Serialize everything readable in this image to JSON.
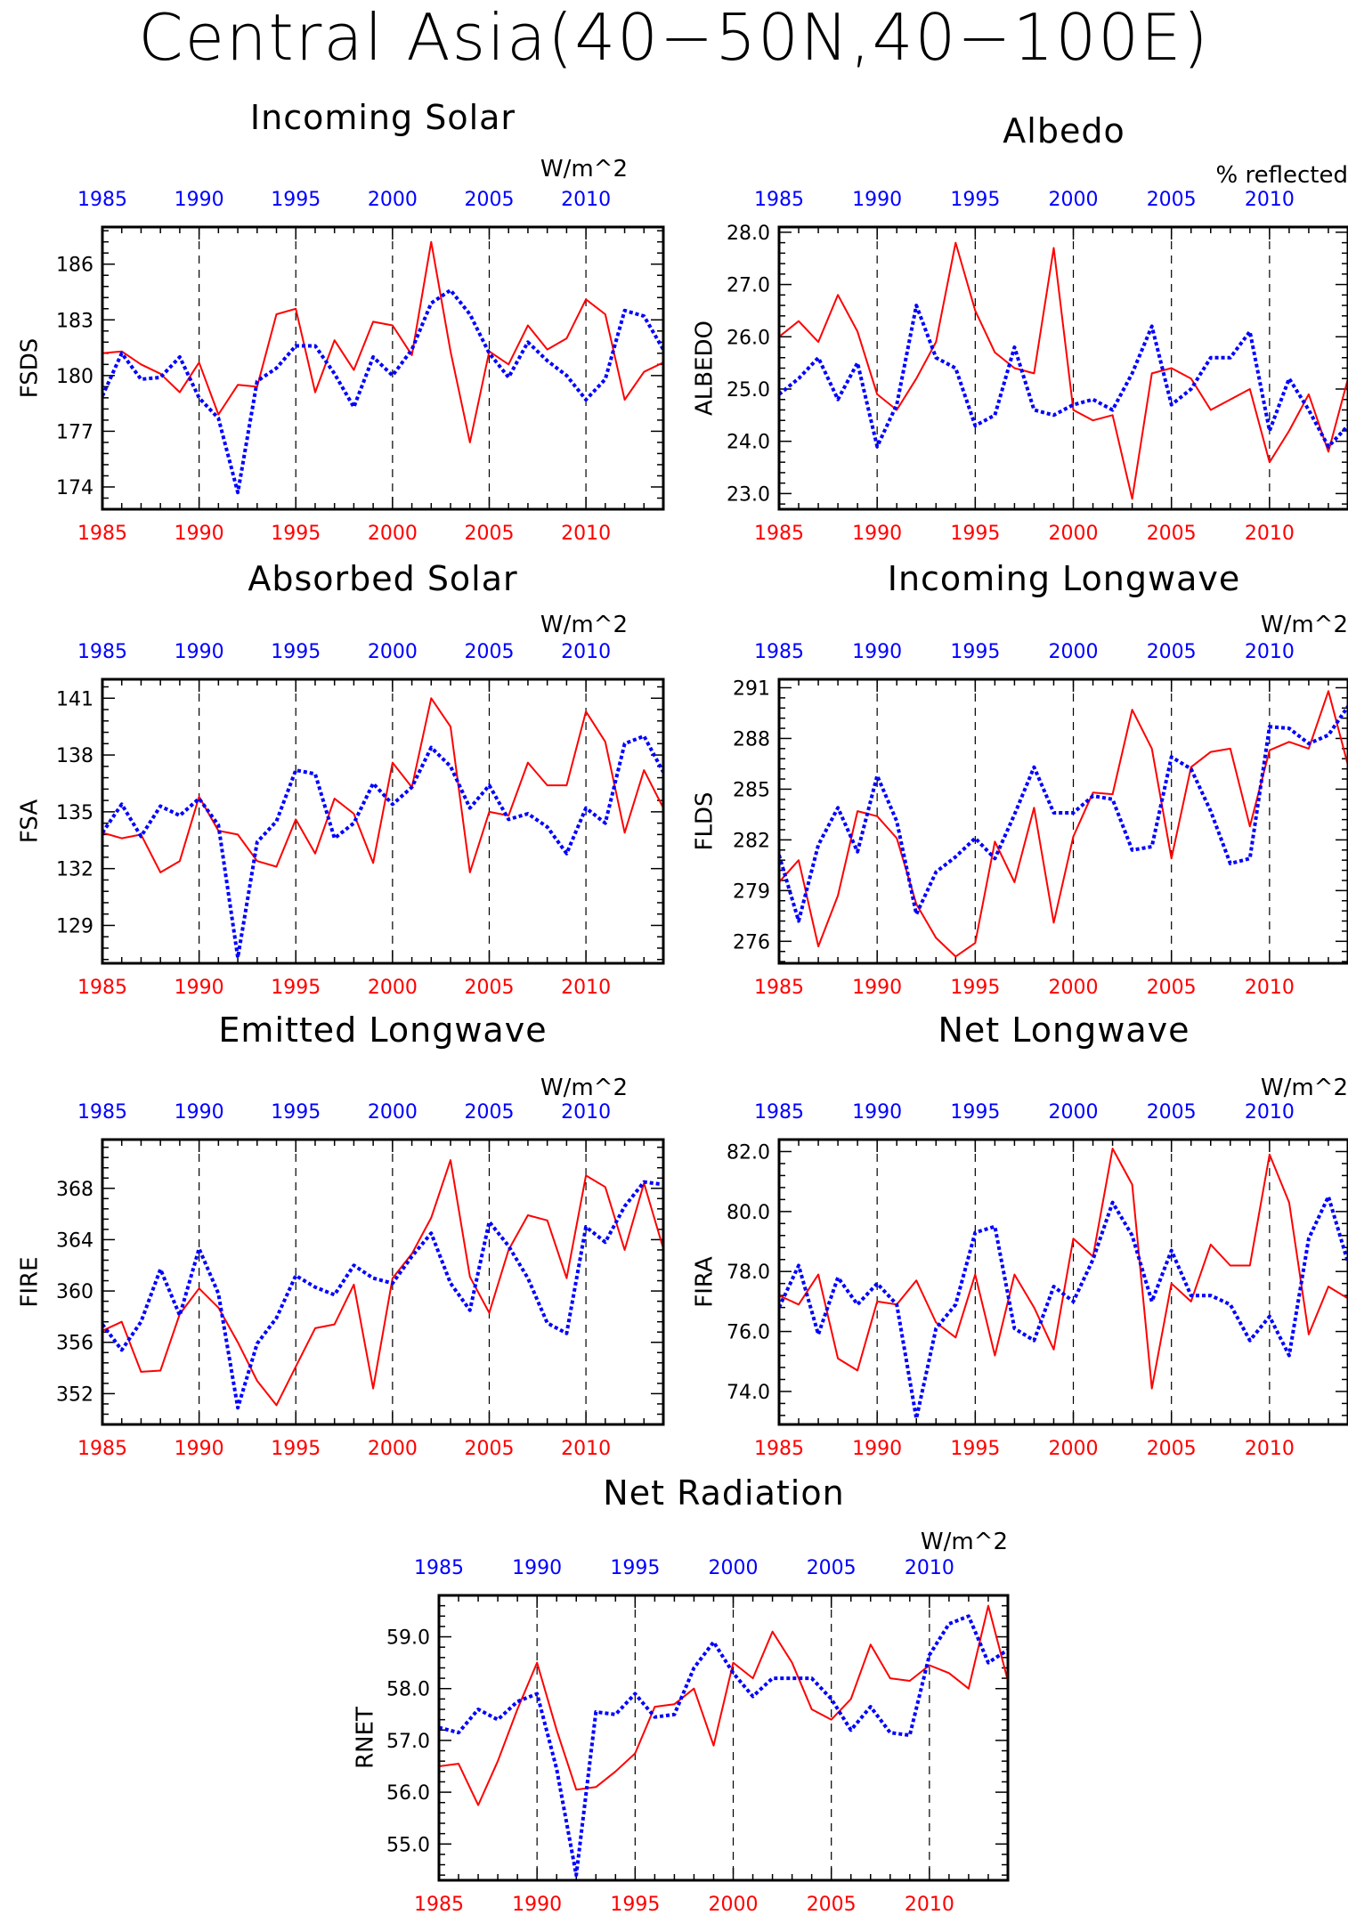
{
  "title": "Central Asia(40−50N,40−100E)",
  "colors": {
    "red_series": "#ff0000",
    "blue_series": "#0000ff",
    "axis": "#000000"
  },
  "chart_data": [
    {
      "type": "line",
      "title": "Incoming Solar",
      "ylabel": "FSDS",
      "units": "W/m^2",
      "xlim": [
        1985,
        2014
      ],
      "ylim": [
        172.8,
        188.0
      ],
      "yticks": [
        174,
        177,
        180,
        183,
        186
      ],
      "ytick_labels": [
        "174",
        "177",
        "180",
        "183",
        "186"
      ],
      "xticks": [
        1985,
        1990,
        1995,
        2000,
        2005,
        2010
      ],
      "x": [
        1985,
        1986,
        1987,
        1988,
        1989,
        1990,
        1991,
        1992,
        1993,
        1994,
        1995,
        1996,
        1997,
        1998,
        1999,
        2000,
        2001,
        2002,
        2003,
        2004,
        2005,
        2006,
        2007,
        2008,
        2009,
        2010,
        2011,
        2012,
        2013,
        2014
      ],
      "series": [
        {
          "style": "solid",
          "values": [
            181.2,
            181.3,
            180.6,
            180.1,
            179.1,
            180.7,
            177.9,
            179.5,
            179.4,
            183.3,
            183.6,
            179.1,
            181.9,
            180.3,
            182.9,
            182.7,
            181.1,
            187.2,
            181.3,
            176.4,
            181.3,
            180.6,
            182.7,
            181.4,
            182.0,
            184.1,
            183.3,
            178.7,
            180.2,
            180.7
          ]
        },
        {
          "style": "dotted",
          "values": [
            178.9,
            181.2,
            179.8,
            179.9,
            181.0,
            178.8,
            177.7,
            173.7,
            179.7,
            180.4,
            181.6,
            181.6,
            180.1,
            178.3,
            181.0,
            180.0,
            181.4,
            183.9,
            184.6,
            183.3,
            181.2,
            179.9,
            181.8,
            180.8,
            180.0,
            178.7,
            179.8,
            183.5,
            183.2,
            181.4
          ]
        }
      ]
    },
    {
      "type": "line",
      "title": "Albedo",
      "ylabel": "ALBEDO",
      "units": "% reflected",
      "xlim": [
        1985,
        2014
      ],
      "ylim": [
        22.7,
        28.1
      ],
      "yticks": [
        23.0,
        24.0,
        25.0,
        26.0,
        27.0,
        28.0
      ],
      "ytick_labels": [
        "23.0",
        "24.0",
        "25.0",
        "26.0",
        "27.0",
        "28.0"
      ],
      "xticks": [
        1985,
        1990,
        1995,
        2000,
        2005,
        2010
      ],
      "x": [
        1985,
        1986,
        1987,
        1988,
        1989,
        1990,
        1991,
        1992,
        1993,
        1994,
        1995,
        1996,
        1997,
        1998,
        1999,
        2000,
        2001,
        2002,
        2003,
        2004,
        2005,
        2006,
        2007,
        2008,
        2009,
        2010,
        2011,
        2012,
        2013,
        2014
      ],
      "series": [
        {
          "style": "solid",
          "values": [
            26.0,
            26.3,
            25.9,
            26.8,
            26.1,
            24.9,
            24.6,
            25.2,
            25.9,
            27.8,
            26.5,
            25.7,
            25.4,
            25.3,
            27.7,
            24.6,
            24.4,
            24.5,
            22.9,
            25.3,
            25.4,
            25.2,
            24.6,
            24.8,
            25.0,
            23.6,
            24.2,
            24.9,
            23.8,
            25.2
          ]
        },
        {
          "style": "dotted",
          "values": [
            24.9,
            25.2,
            25.6,
            24.8,
            25.5,
            23.9,
            24.7,
            26.6,
            25.6,
            25.4,
            24.3,
            24.5,
            25.8,
            24.6,
            24.5,
            24.7,
            24.8,
            24.6,
            25.3,
            26.2,
            24.7,
            25.0,
            25.6,
            25.6,
            26.1,
            24.2,
            25.2,
            24.6,
            23.9,
            24.3
          ]
        }
      ]
    },
    {
      "type": "line",
      "title": "Absorbed Solar",
      "ylabel": "FSA",
      "units": "W/m^2",
      "xlim": [
        1985,
        2014
      ],
      "ylim": [
        127.0,
        142.0
      ],
      "yticks": [
        129,
        132,
        135,
        138,
        141
      ],
      "ytick_labels": [
        "129",
        "132",
        "135",
        "138",
        "141"
      ],
      "xticks": [
        1985,
        1990,
        1995,
        2000,
        2005,
        2010
      ],
      "x": [
        1985,
        1986,
        1987,
        1988,
        1989,
        1990,
        1991,
        1992,
        1993,
        1994,
        1995,
        1996,
        1997,
        1998,
        1999,
        2000,
        2001,
        2002,
        2003,
        2004,
        2005,
        2006,
        2007,
        2008,
        2009,
        2010,
        2011,
        2012,
        2013,
        2014
      ],
      "series": [
        {
          "style": "solid",
          "values": [
            133.9,
            133.6,
            133.8,
            131.8,
            132.4,
            135.8,
            134.0,
            133.8,
            132.4,
            132.1,
            134.6,
            132.8,
            135.7,
            134.9,
            132.3,
            137.6,
            136.3,
            141.0,
            139.5,
            131.8,
            135.0,
            134.8,
            137.6,
            136.4,
            136.4,
            140.3,
            138.7,
            133.9,
            137.2,
            135.2
          ]
        },
        {
          "style": "dotted",
          "values": [
            133.9,
            135.4,
            133.7,
            135.3,
            134.8,
            135.7,
            134.3,
            127.3,
            133.4,
            134.5,
            137.2,
            137.0,
            133.6,
            134.4,
            136.5,
            135.4,
            136.3,
            138.4,
            137.4,
            135.2,
            136.4,
            134.6,
            134.9,
            134.2,
            132.8,
            135.2,
            134.4,
            138.6,
            139.0,
            137.1
          ]
        }
      ]
    },
    {
      "type": "line",
      "title": "Incoming Longwave",
      "ylabel": "FLDS",
      "units": "W/m^2",
      "xlim": [
        1985,
        2014
      ],
      "ylim": [
        274.7,
        291.5
      ],
      "yticks": [
        276,
        279,
        282,
        285,
        288,
        291
      ],
      "ytick_labels": [
        "276",
        "279",
        "282",
        "285",
        "288",
        "291"
      ],
      "xticks": [
        1985,
        1990,
        1995,
        2000,
        2005,
        2010
      ],
      "x": [
        1985,
        1986,
        1987,
        1988,
        1989,
        1990,
        1991,
        1992,
        1993,
        1994,
        1995,
        1996,
        1997,
        1998,
        1999,
        2000,
        2001,
        2002,
        2003,
        2004,
        2005,
        2006,
        2007,
        2008,
        2009,
        2010,
        2011,
        2012,
        2013,
        2014
      ],
      "series": [
        {
          "style": "solid",
          "values": [
            279.5,
            280.8,
            275.7,
            278.7,
            283.7,
            283.4,
            282.1,
            278.2,
            276.2,
            275.1,
            275.9,
            281.9,
            279.5,
            283.9,
            277.1,
            282.2,
            284.8,
            284.7,
            289.7,
            287.4,
            280.9,
            286.3,
            287.2,
            287.4,
            282.8,
            287.3,
            287.8,
            287.4,
            290.8,
            286.4
          ]
        },
        {
          "style": "dotted",
          "values": [
            281.1,
            277.2,
            281.7,
            283.9,
            281.3,
            285.8,
            283.1,
            277.6,
            280.1,
            281.0,
            282.1,
            280.9,
            283.5,
            286.3,
            283.6,
            283.6,
            284.6,
            284.4,
            281.4,
            281.6,
            286.9,
            286.2,
            283.7,
            280.6,
            280.9,
            288.7,
            288.6,
            287.7,
            288.2,
            289.9
          ]
        }
      ]
    },
    {
      "type": "line",
      "title": "Emitted Longwave",
      "ylabel": "FIRE",
      "units": "W/m^2",
      "xlim": [
        1985,
        2014
      ],
      "ylim": [
        349.6,
        371.8
      ],
      "yticks": [
        352,
        356,
        360,
        364,
        368
      ],
      "ytick_labels": [
        "352",
        "356",
        "360",
        "364",
        "368"
      ],
      "xticks": [
        1985,
        1990,
        1995,
        2000,
        2005,
        2010
      ],
      "x": [
        1985,
        1986,
        1987,
        1988,
        1989,
        1990,
        1991,
        1992,
        1993,
        1994,
        1995,
        1996,
        1997,
        1998,
        1999,
        2000,
        2001,
        2002,
        2003,
        2004,
        2005,
        2006,
        2007,
        2008,
        2009,
        2010,
        2011,
        2012,
        2013,
        2014
      ],
      "series": [
        {
          "style": "solid",
          "values": [
            356.9,
            357.6,
            353.7,
            353.8,
            358.2,
            360.2,
            358.7,
            356.0,
            353.0,
            351.1,
            354.1,
            357.1,
            357.4,
            360.5,
            352.4,
            361.0,
            362.9,
            365.7,
            370.2,
            361.1,
            358.3,
            363.2,
            365.9,
            365.5,
            361.0,
            369.0,
            368.1,
            363.2,
            368.4,
            363.3
          ]
        },
        {
          "style": "dotted",
          "values": [
            357.4,
            355.4,
            357.6,
            361.7,
            358.1,
            363.3,
            359.8,
            350.9,
            355.9,
            357.9,
            361.2,
            360.3,
            359.7,
            362.0,
            361.0,
            360.6,
            362.7,
            364.5,
            360.6,
            358.5,
            365.4,
            363.5,
            361.0,
            357.5,
            356.7,
            365.0,
            363.8,
            366.6,
            368.5,
            368.3
          ]
        }
      ]
    },
    {
      "type": "line",
      "title": "Net Longwave",
      "ylabel": "FIRA",
      "units": "W/m^2",
      "xlim": [
        1985,
        2014
      ],
      "ylim": [
        72.9,
        82.4
      ],
      "yticks": [
        74.0,
        76.0,
        78.0,
        80.0,
        82.0
      ],
      "ytick_labels": [
        "74.0",
        "76.0",
        "78.0",
        "80.0",
        "82.0"
      ],
      "xticks": [
        1985,
        1990,
        1995,
        2000,
        2005,
        2010
      ],
      "x": [
        1985,
        1986,
        1987,
        1988,
        1989,
        1990,
        1991,
        1992,
        1993,
        1994,
        1995,
        1996,
        1997,
        1998,
        1999,
        2000,
        2001,
        2002,
        2003,
        2004,
        2005,
        2006,
        2007,
        2008,
        2009,
        2010,
        2011,
        2012,
        2013,
        2014
      ],
      "series": [
        {
          "style": "solid",
          "values": [
            77.2,
            76.9,
            77.9,
            75.1,
            74.7,
            77.0,
            76.9,
            77.7,
            76.3,
            75.8,
            77.9,
            75.2,
            77.9,
            76.8,
            75.4,
            79.1,
            78.5,
            82.1,
            80.9,
            74.1,
            77.6,
            77.0,
            78.9,
            78.2,
            78.2,
            81.9,
            80.3,
            75.9,
            77.5,
            77.1
          ]
        },
        {
          "style": "dotted",
          "values": [
            76.8,
            78.2,
            75.9,
            77.8,
            76.9,
            77.6,
            76.9,
            73.1,
            76.1,
            76.9,
            79.3,
            79.5,
            76.1,
            75.7,
            77.5,
            77.0,
            78.4,
            80.3,
            79.2,
            77.0,
            78.7,
            77.2,
            77.2,
            76.9,
            75.7,
            76.5,
            75.2,
            79.1,
            80.5,
            78.3
          ]
        }
      ]
    },
    {
      "type": "line",
      "title": "Net Radiation",
      "ylabel": "RNET",
      "units": "W/m^2",
      "xlim": [
        1985,
        2014
      ],
      "ylim": [
        54.3,
        59.8
      ],
      "yticks": [
        55.0,
        56.0,
        57.0,
        58.0,
        59.0
      ],
      "ytick_labels": [
        "55.0",
        "56.0",
        "57.0",
        "58.0",
        "59.0"
      ],
      "xticks": [
        1985,
        1990,
        1995,
        2000,
        2005,
        2010
      ],
      "x": [
        1985,
        1986,
        1987,
        1988,
        1989,
        1990,
        1991,
        1992,
        1993,
        1994,
        1995,
        1996,
        1997,
        1998,
        1999,
        2000,
        2001,
        2002,
        2003,
        2004,
        2005,
        2006,
        2007,
        2008,
        2009,
        2010,
        2011,
        2012,
        2013,
        2014
      ],
      "series": [
        {
          "style": "solid",
          "values": [
            56.5,
            56.55,
            55.75,
            56.6,
            57.6,
            58.5,
            57.2,
            56.05,
            56.1,
            56.4,
            56.75,
            57.65,
            57.7,
            58.0,
            56.9,
            58.5,
            58.2,
            59.1,
            58.5,
            57.6,
            57.4,
            57.8,
            58.85,
            58.2,
            58.15,
            58.45,
            58.3,
            58.0,
            59.6,
            58.15
          ]
        },
        {
          "style": "dotted",
          "values": [
            57.25,
            57.15,
            57.6,
            57.4,
            57.75,
            57.9,
            56.45,
            54.4,
            57.55,
            57.5,
            57.9,
            57.45,
            57.5,
            58.4,
            58.9,
            58.3,
            57.85,
            58.2,
            58.2,
            58.2,
            57.8,
            57.2,
            57.65,
            57.15,
            57.1,
            58.65,
            59.25,
            59.4,
            58.5,
            58.75
          ]
        }
      ]
    }
  ]
}
